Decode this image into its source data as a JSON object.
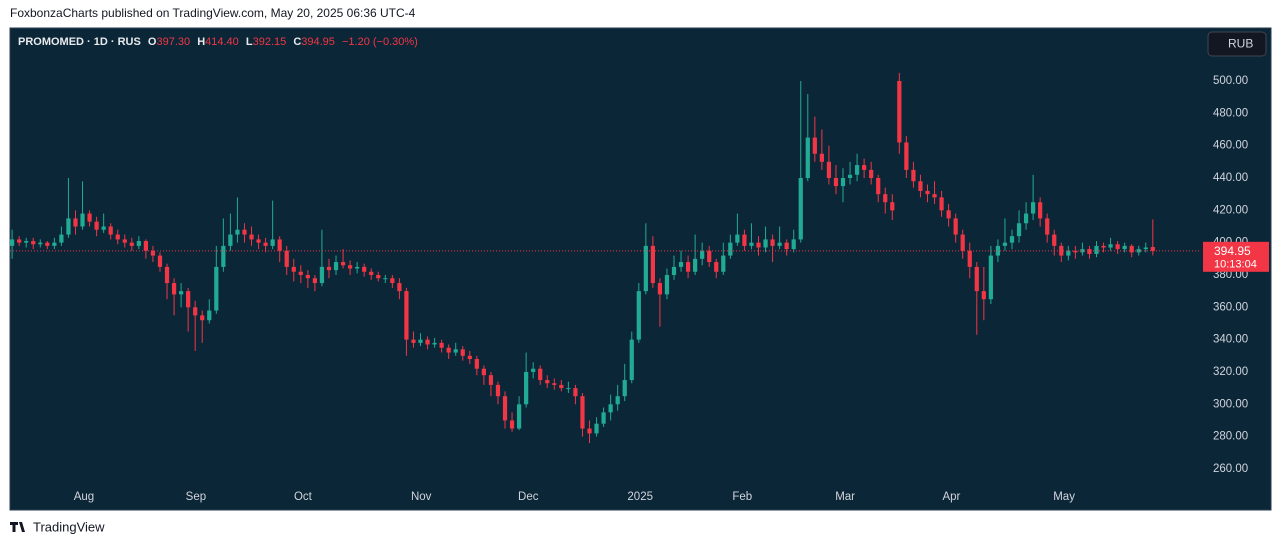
{
  "header": {
    "publisher": "FoxbonzaCharts published on TradingView.com, May 20, 2025 06:36 UTC-4"
  },
  "footer": {
    "brand": "TradingView"
  },
  "chart_data": {
    "type": "candlestick",
    "symbol": "PROMOMED · 1D · RUS",
    "legend_labels": [
      "O",
      "H",
      "L",
      "C"
    ],
    "legend_values": [
      "397.30",
      "414.40",
      "392.15",
      "394.95"
    ],
    "change": "−1.20 (−0.30%)",
    "currency": "RUB",
    "countdown": "10:13:04",
    "up_color": "#22ab94",
    "down_color": "#f23645",
    "grid": false,
    "xlim": [
      -0.3,
      168.7
    ],
    "xticks": [
      {
        "value": 10.2,
        "label": "Aug"
      },
      {
        "value": 26.1,
        "label": "Sep"
      },
      {
        "value": 41.3,
        "label": "Oct"
      },
      {
        "value": 58.1,
        "label": "Nov"
      },
      {
        "value": 73.3,
        "label": "Dec"
      },
      {
        "value": 89.2,
        "label": "2025"
      },
      {
        "value": 103.7,
        "label": "Feb"
      },
      {
        "value": 118.3,
        "label": "Mar"
      },
      {
        "value": 133.4,
        "label": "Apr"
      },
      {
        "value": 149.4,
        "label": "May"
      }
    ],
    "ylim": [
      251.3,
      532.8
    ],
    "yticks": [
      {
        "value": 260,
        "label": "260.00"
      },
      {
        "value": 280,
        "label": "280.00"
      },
      {
        "value": 300,
        "label": "300.00"
      },
      {
        "value": 320,
        "label": "320.00"
      },
      {
        "value": 340,
        "label": "340.00"
      },
      {
        "value": 360,
        "label": "360.00"
      },
      {
        "value": 380,
        "label": "380.00"
      },
      {
        "value": 400,
        "label": "400.00"
      },
      {
        "value": 420,
        "label": "420.00"
      },
      {
        "value": 440,
        "label": "440.00"
      },
      {
        "value": 460,
        "label": "460.00"
      },
      {
        "value": 480,
        "label": "480.00"
      },
      {
        "value": 500,
        "label": "500.00"
      }
    ],
    "ohlc": [
      [
        398,
        408,
        390,
        402
      ],
      [
        402,
        404,
        398,
        400
      ],
      [
        400,
        403,
        397,
        401
      ],
      [
        401,
        403,
        396,
        399
      ],
      [
        399,
        402,
        397,
        400
      ],
      [
        400,
        401,
        396,
        398
      ],
      [
        398,
        403,
        396,
        400
      ],
      [
        400,
        410,
        398,
        405
      ],
      [
        405,
        440,
        403,
        415
      ],
      [
        415,
        420,
        405,
        410
      ],
      [
        410,
        438,
        408,
        418
      ],
      [
        418,
        420,
        410,
        413
      ],
      [
        413,
        416,
        404,
        408
      ],
      [
        408,
        418,
        406,
        410
      ],
      [
        410,
        412,
        402,
        405
      ],
      [
        405,
        408,
        399,
        402
      ],
      [
        402,
        405,
        397,
        400
      ],
      [
        400,
        403,
        395,
        398
      ],
      [
        398,
        404,
        396,
        401
      ],
      [
        401,
        402,
        390,
        395
      ],
      [
        395,
        398,
        388,
        392
      ],
      [
        392,
        394,
        382,
        385
      ],
      [
        385,
        387,
        365,
        375
      ],
      [
        375,
        378,
        355,
        368
      ],
      [
        368,
        375,
        360,
        370
      ],
      [
        370,
        372,
        345,
        360
      ],
      [
        360,
        364,
        333,
        355
      ],
      [
        355,
        358,
        338,
        352
      ],
      [
        352,
        365,
        350,
        358
      ],
      [
        358,
        398,
        356,
        385
      ],
      [
        385,
        415,
        382,
        398
      ],
      [
        398,
        418,
        395,
        405
      ],
      [
        405,
        428,
        400,
        408
      ],
      [
        408,
        412,
        400,
        405
      ],
      [
        405,
        410,
        398,
        402
      ],
      [
        402,
        405,
        396,
        400
      ],
      [
        400,
        403,
        394,
        398
      ],
      [
        398,
        426,
        396,
        402
      ],
      [
        402,
        404,
        388,
        395
      ],
      [
        395,
        398,
        380,
        385
      ],
      [
        385,
        390,
        376,
        382
      ],
      [
        382,
        386,
        375,
        380
      ],
      [
        380,
        383,
        372,
        378
      ],
      [
        378,
        380,
        370,
        375
      ],
      [
        375,
        408,
        373,
        385
      ],
      [
        385,
        390,
        378,
        383
      ],
      [
        383,
        392,
        380,
        388
      ],
      [
        388,
        396,
        384,
        386
      ],
      [
        386,
        389,
        380,
        384
      ],
      [
        384,
        388,
        381,
        385
      ],
      [
        385,
        387,
        379,
        382
      ],
      [
        382,
        384,
        377,
        380
      ],
      [
        380,
        382,
        376,
        378
      ],
      [
        378,
        380,
        375,
        378
      ],
      [
        378,
        380,
        372,
        375
      ],
      [
        375,
        378,
        365,
        370
      ],
      [
        370,
        372,
        330,
        340
      ],
      [
        340,
        345,
        335,
        338
      ],
      [
        338,
        344,
        336,
        340
      ],
      [
        340,
        342,
        334,
        337
      ],
      [
        337,
        341,
        335,
        338
      ],
      [
        338,
        340,
        332,
        335
      ],
      [
        335,
        337,
        328,
        332
      ],
      [
        332,
        338,
        330,
        334
      ],
      [
        334,
        336,
        327,
        330
      ],
      [
        330,
        333,
        325,
        328
      ],
      [
        328,
        330,
        318,
        322
      ],
      [
        322,
        324,
        312,
        318
      ],
      [
        318,
        320,
        305,
        312
      ],
      [
        312,
        314,
        300,
        305
      ],
      [
        305,
        308,
        285,
        290
      ],
      [
        290,
        295,
        283,
        285
      ],
      [
        285,
        305,
        284,
        300
      ],
      [
        300,
        332,
        298,
        320
      ],
      [
        320,
        326,
        316,
        322
      ],
      [
        322,
        324,
        312,
        315
      ],
      [
        315,
        318,
        310,
        313
      ],
      [
        313,
        316,
        309,
        312
      ],
      [
        312,
        315,
        308,
        310
      ],
      [
        310,
        314,
        307,
        310
      ],
      [
        310,
        312,
        300,
        305
      ],
      [
        305,
        307,
        280,
        285
      ],
      [
        285,
        290,
        276,
        282
      ],
      [
        282,
        292,
        280,
        288
      ],
      [
        288,
        298,
        286,
        295
      ],
      [
        295,
        306,
        290,
        300
      ],
      [
        300,
        312,
        296,
        305
      ],
      [
        305,
        325,
        302,
        315
      ],
      [
        315,
        345,
        313,
        340
      ],
      [
        340,
        375,
        338,
        370
      ],
      [
        370,
        412,
        368,
        398
      ],
      [
        398,
        404,
        372,
        375
      ],
      [
        375,
        378,
        348,
        368
      ],
      [
        368,
        384,
        365,
        380
      ],
      [
        380,
        392,
        377,
        385
      ],
      [
        385,
        395,
        382,
        388
      ],
      [
        388,
        392,
        378,
        382
      ],
      [
        382,
        405,
        380,
        390
      ],
      [
        390,
        400,
        386,
        395
      ],
      [
        395,
        398,
        385,
        388
      ],
      [
        388,
        390,
        378,
        382
      ],
      [
        382,
        400,
        380,
        392
      ],
      [
        392,
        405,
        390,
        400
      ],
      [
        400,
        418,
        398,
        405
      ],
      [
        405,
        408,
        395,
        398
      ],
      [
        398,
        412,
        396,
        400
      ],
      [
        400,
        404,
        392,
        397
      ],
      [
        397,
        410,
        394,
        402
      ],
      [
        402,
        405,
        388,
        398
      ],
      [
        398,
        410,
        396,
        400
      ],
      [
        400,
        402,
        392,
        396
      ],
      [
        396,
        408,
        394,
        402
      ],
      [
        402,
        500,
        400,
        440
      ],
      [
        440,
        492,
        438,
        465
      ],
      [
        465,
        478,
        450,
        455
      ],
      [
        455,
        470,
        445,
        450
      ],
      [
        450,
        460,
        436,
        440
      ],
      [
        440,
        448,
        430,
        435
      ],
      [
        435,
        446,
        425,
        440
      ],
      [
        440,
        450,
        436,
        442
      ],
      [
        442,
        455,
        438,
        448
      ],
      [
        448,
        452,
        440,
        445
      ],
      [
        445,
        450,
        436,
        440
      ],
      [
        440,
        442,
        425,
        430
      ],
      [
        430,
        434,
        418,
        425
      ],
      [
        425,
        430,
        414,
        420
      ],
      [
        500,
        505,
        455,
        462
      ],
      [
        462,
        466,
        440,
        445
      ],
      [
        445,
        450,
        434,
        438
      ],
      [
        438,
        442,
        428,
        432
      ],
      [
        432,
        436,
        425,
        430
      ],
      [
        430,
        438,
        424,
        428
      ],
      [
        428,
        432,
        416,
        420
      ],
      [
        420,
        424,
        410,
        415
      ],
      [
        415,
        418,
        400,
        405
      ],
      [
        405,
        408,
        390,
        395
      ],
      [
        395,
        400,
        378,
        385
      ],
      [
        385,
        388,
        343,
        370
      ],
      [
        370,
        385,
        352,
        365
      ],
      [
        365,
        398,
        362,
        392
      ],
      [
        392,
        402,
        388,
        398
      ],
      [
        398,
        415,
        395,
        400
      ],
      [
        400,
        408,
        396,
        404
      ],
      [
        404,
        420,
        400,
        412
      ],
      [
        412,
        425,
        408,
        418
      ],
      [
        418,
        442,
        414,
        425
      ],
      [
        425,
        428,
        410,
        415
      ],
      [
        415,
        418,
        400,
        405
      ],
      [
        405,
        408,
        392,
        398
      ],
      [
        398,
        400,
        388,
        392
      ],
      [
        392,
        398,
        389,
        395
      ],
      [
        395,
        398,
        390,
        394
      ],
      [
        394,
        400,
        392,
        396
      ],
      [
        396,
        398,
        390,
        393
      ],
      [
        393,
        401,
        391,
        398
      ],
      [
        398,
        400,
        394,
        397
      ],
      [
        397,
        403,
        395,
        399
      ],
      [
        399,
        401,
        393,
        396
      ],
      [
        396,
        400,
        394,
        398
      ],
      [
        398,
        399,
        391,
        394
      ],
      [
        394,
        398,
        392,
        396
      ],
      [
        396,
        400,
        394,
        397
      ],
      [
        397.3,
        414.4,
        392.15,
        394.95
      ]
    ]
  }
}
